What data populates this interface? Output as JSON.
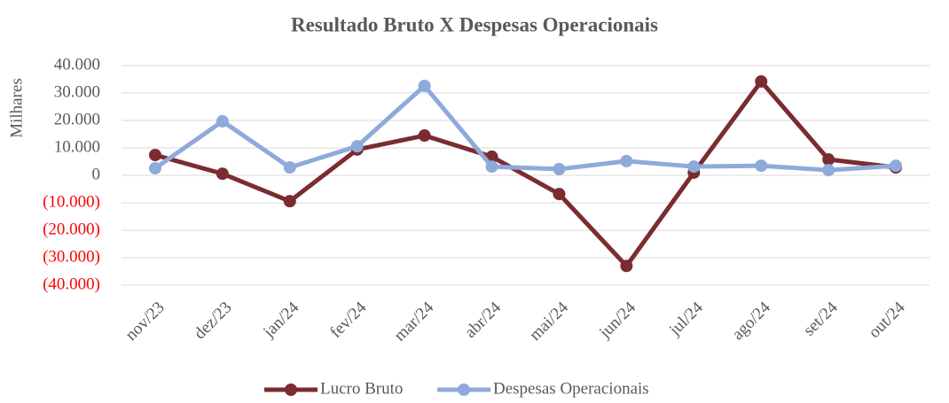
{
  "chart_data": {
    "type": "line",
    "title": "Resultado Bruto X Despesas Operacionais",
    "y_label": "Milhares",
    "categories": [
      "nov/23",
      "dez/23",
      "jan/24",
      "fev/24",
      "mar/24",
      "abr/24",
      "mai/24",
      "jun/24",
      "jul/24",
      "ago/24",
      "set/24",
      "out/24"
    ],
    "series": [
      {
        "name": "Lucro Bruto",
        "color": "#7b2c30",
        "values": [
          7400,
          600,
          -9400,
          9400,
          14500,
          6800,
          -6800,
          -33000,
          1000,
          34200,
          5800,
          2900
        ]
      },
      {
        "name": "Despesas Operacionais",
        "color": "#8eaadb",
        "values": [
          2600,
          19700,
          2900,
          10600,
          32600,
          3200,
          2300,
          5200,
          3200,
          3500,
          1900,
          3500
        ]
      }
    ],
    "ylim": [
      -40000,
      40000
    ],
    "yticks": [
      {
        "value": 40000,
        "label": "40.000"
      },
      {
        "value": 30000,
        "label": "30.000"
      },
      {
        "value": 20000,
        "label": "20.000"
      },
      {
        "value": 10000,
        "label": "10.000"
      },
      0,
      {
        "value": -10000,
        "label": "(10.000)"
      },
      {
        "value": -20000,
        "label": "(20.000)"
      },
      {
        "value": -30000,
        "label": "(30.000)"
      },
      {
        "value": -40000,
        "label": "(40.000)"
      }
    ],
    "negative_tick_color": "#ff0000",
    "grid": true,
    "legend": "bottom"
  }
}
